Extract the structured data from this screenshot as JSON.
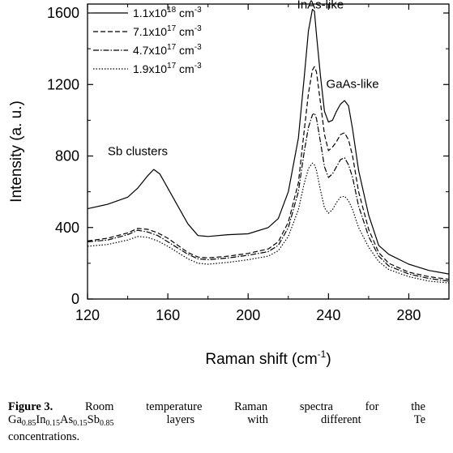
{
  "chart_data": {
    "type": "line",
    "xlabel": "Raman shift (cm",
    "xlabel_sup": "-1",
    "xlabel_end": ")",
    "ylabel": "Intensity (a. u.)",
    "xlim": [
      120,
      300
    ],
    "ylim": [
      0,
      1650
    ],
    "xticks": [
      "120",
      "160",
      "200",
      "240",
      "280"
    ],
    "xtick_values": [
      120,
      160,
      200,
      240,
      280
    ],
    "yticks": [
      "0",
      "400",
      "800",
      "1200",
      "1600"
    ],
    "ytick_values": [
      0,
      400,
      800,
      1200,
      1600
    ],
    "legend_position": "top-left",
    "annotations": [
      {
        "text": "InAs-like",
        "x": 236,
        "y": 1625
      },
      {
        "text": "GaAs-like",
        "x": 252,
        "y": 1180
      },
      {
        "text": "Sb clusters",
        "x": 145,
        "y": 805
      }
    ],
    "series": [
      {
        "name_base": "1.1x10",
        "name_exp": "18",
        "name_unit": " cm",
        "name_unit_exp": "-3",
        "style": "solid",
        "x": [
          120,
          130,
          140,
          145,
          150,
          153,
          156,
          160,
          165,
          170,
          175,
          180,
          190,
          200,
          210,
          215,
          220,
          225,
          228,
          230,
          232,
          233,
          234,
          236,
          238,
          240,
          242,
          244,
          246,
          248,
          250,
          252,
          255,
          260,
          265,
          270,
          280,
          290,
          300
        ],
        "y": [
          505,
          530,
          570,
          620,
          690,
          725,
          700,
          620,
          520,
          420,
          355,
          350,
          360,
          365,
          400,
          450,
          600,
          900,
          1250,
          1500,
          1620,
          1610,
          1480,
          1250,
          1050,
          990,
          1000,
          1050,
          1090,
          1110,
          1080,
          950,
          720,
          470,
          300,
          250,
          195,
          160,
          140
        ]
      },
      {
        "name_base": "7.1x10",
        "name_exp": "17",
        "name_unit": " cm",
        "name_unit_exp": "-3",
        "style": "dashed",
        "x": [
          120,
          130,
          140,
          145,
          150,
          155,
          160,
          165,
          170,
          175,
          180,
          190,
          200,
          210,
          215,
          220,
          225,
          228,
          230,
          232,
          233,
          234,
          236,
          238,
          240,
          242,
          244,
          246,
          248,
          250,
          252,
          255,
          260,
          265,
          270,
          280,
          290,
          300
        ],
        "y": [
          325,
          340,
          370,
          395,
          390,
          370,
          340,
          300,
          260,
          235,
          230,
          240,
          255,
          280,
          320,
          430,
          650,
          950,
          1150,
          1280,
          1300,
          1270,
          1100,
          920,
          830,
          850,
          880,
          920,
          930,
          890,
          800,
          600,
          390,
          260,
          200,
          150,
          125,
          110
        ]
      },
      {
        "name_base": "4.7x10",
        "name_exp": "17",
        "name_unit": " cm",
        "name_unit_exp": "-3",
        "style": "dashdot",
        "x": [
          120,
          130,
          140,
          145,
          150,
          155,
          160,
          165,
          170,
          175,
          180,
          190,
          200,
          210,
          215,
          220,
          225,
          228,
          230,
          232,
          233,
          234,
          236,
          238,
          240,
          242,
          244,
          246,
          248,
          250,
          252,
          255,
          260,
          265,
          270,
          280,
          290,
          300
        ],
        "y": [
          320,
          330,
          360,
          385,
          375,
          355,
          320,
          285,
          250,
          225,
          220,
          230,
          245,
          265,
          300,
          400,
          600,
          830,
          960,
          1030,
          1040,
          1010,
          880,
          740,
          680,
          700,
          740,
          780,
          790,
          750,
          680,
          520,
          350,
          240,
          185,
          140,
          115,
          100
        ]
      },
      {
        "name_base": "1.9x10",
        "name_exp": "17",
        "name_unit": " cm",
        "name_unit_exp": "-3",
        "style": "dotted",
        "x": [
          120,
          130,
          140,
          145,
          150,
          155,
          160,
          165,
          170,
          175,
          180,
          190,
          200,
          210,
          215,
          220,
          225,
          228,
          230,
          232,
          233,
          234,
          236,
          238,
          240,
          242,
          244,
          246,
          248,
          250,
          252,
          255,
          260,
          265,
          270,
          280,
          290,
          300
        ],
        "y": [
          295,
          305,
          330,
          350,
          345,
          325,
          295,
          260,
          225,
          200,
          195,
          205,
          220,
          240,
          270,
          350,
          500,
          650,
          730,
          760,
          750,
          720,
          610,
          510,
          480,
          500,
          540,
          570,
          575,
          550,
          500,
          400,
          290,
          210,
          165,
          125,
          100,
          90
        ]
      }
    ]
  },
  "caption": {
    "label": "Figure 3.",
    "w1": "Room",
    "w2": "temperature",
    "w3": "Raman",
    "w4": "spectra",
    "w5": "for",
    "w6": "the",
    "f1": "Ga",
    "f1s": "0.85",
    "f2": "In",
    "f2s": "0.15",
    "f3": "As",
    "f3s": "0.15",
    "f4": "Sb",
    "f4s": "0.85",
    "w7": "layers",
    "w8": "with",
    "w9": "different",
    "w10": "Te",
    "line3": "concentrations."
  }
}
